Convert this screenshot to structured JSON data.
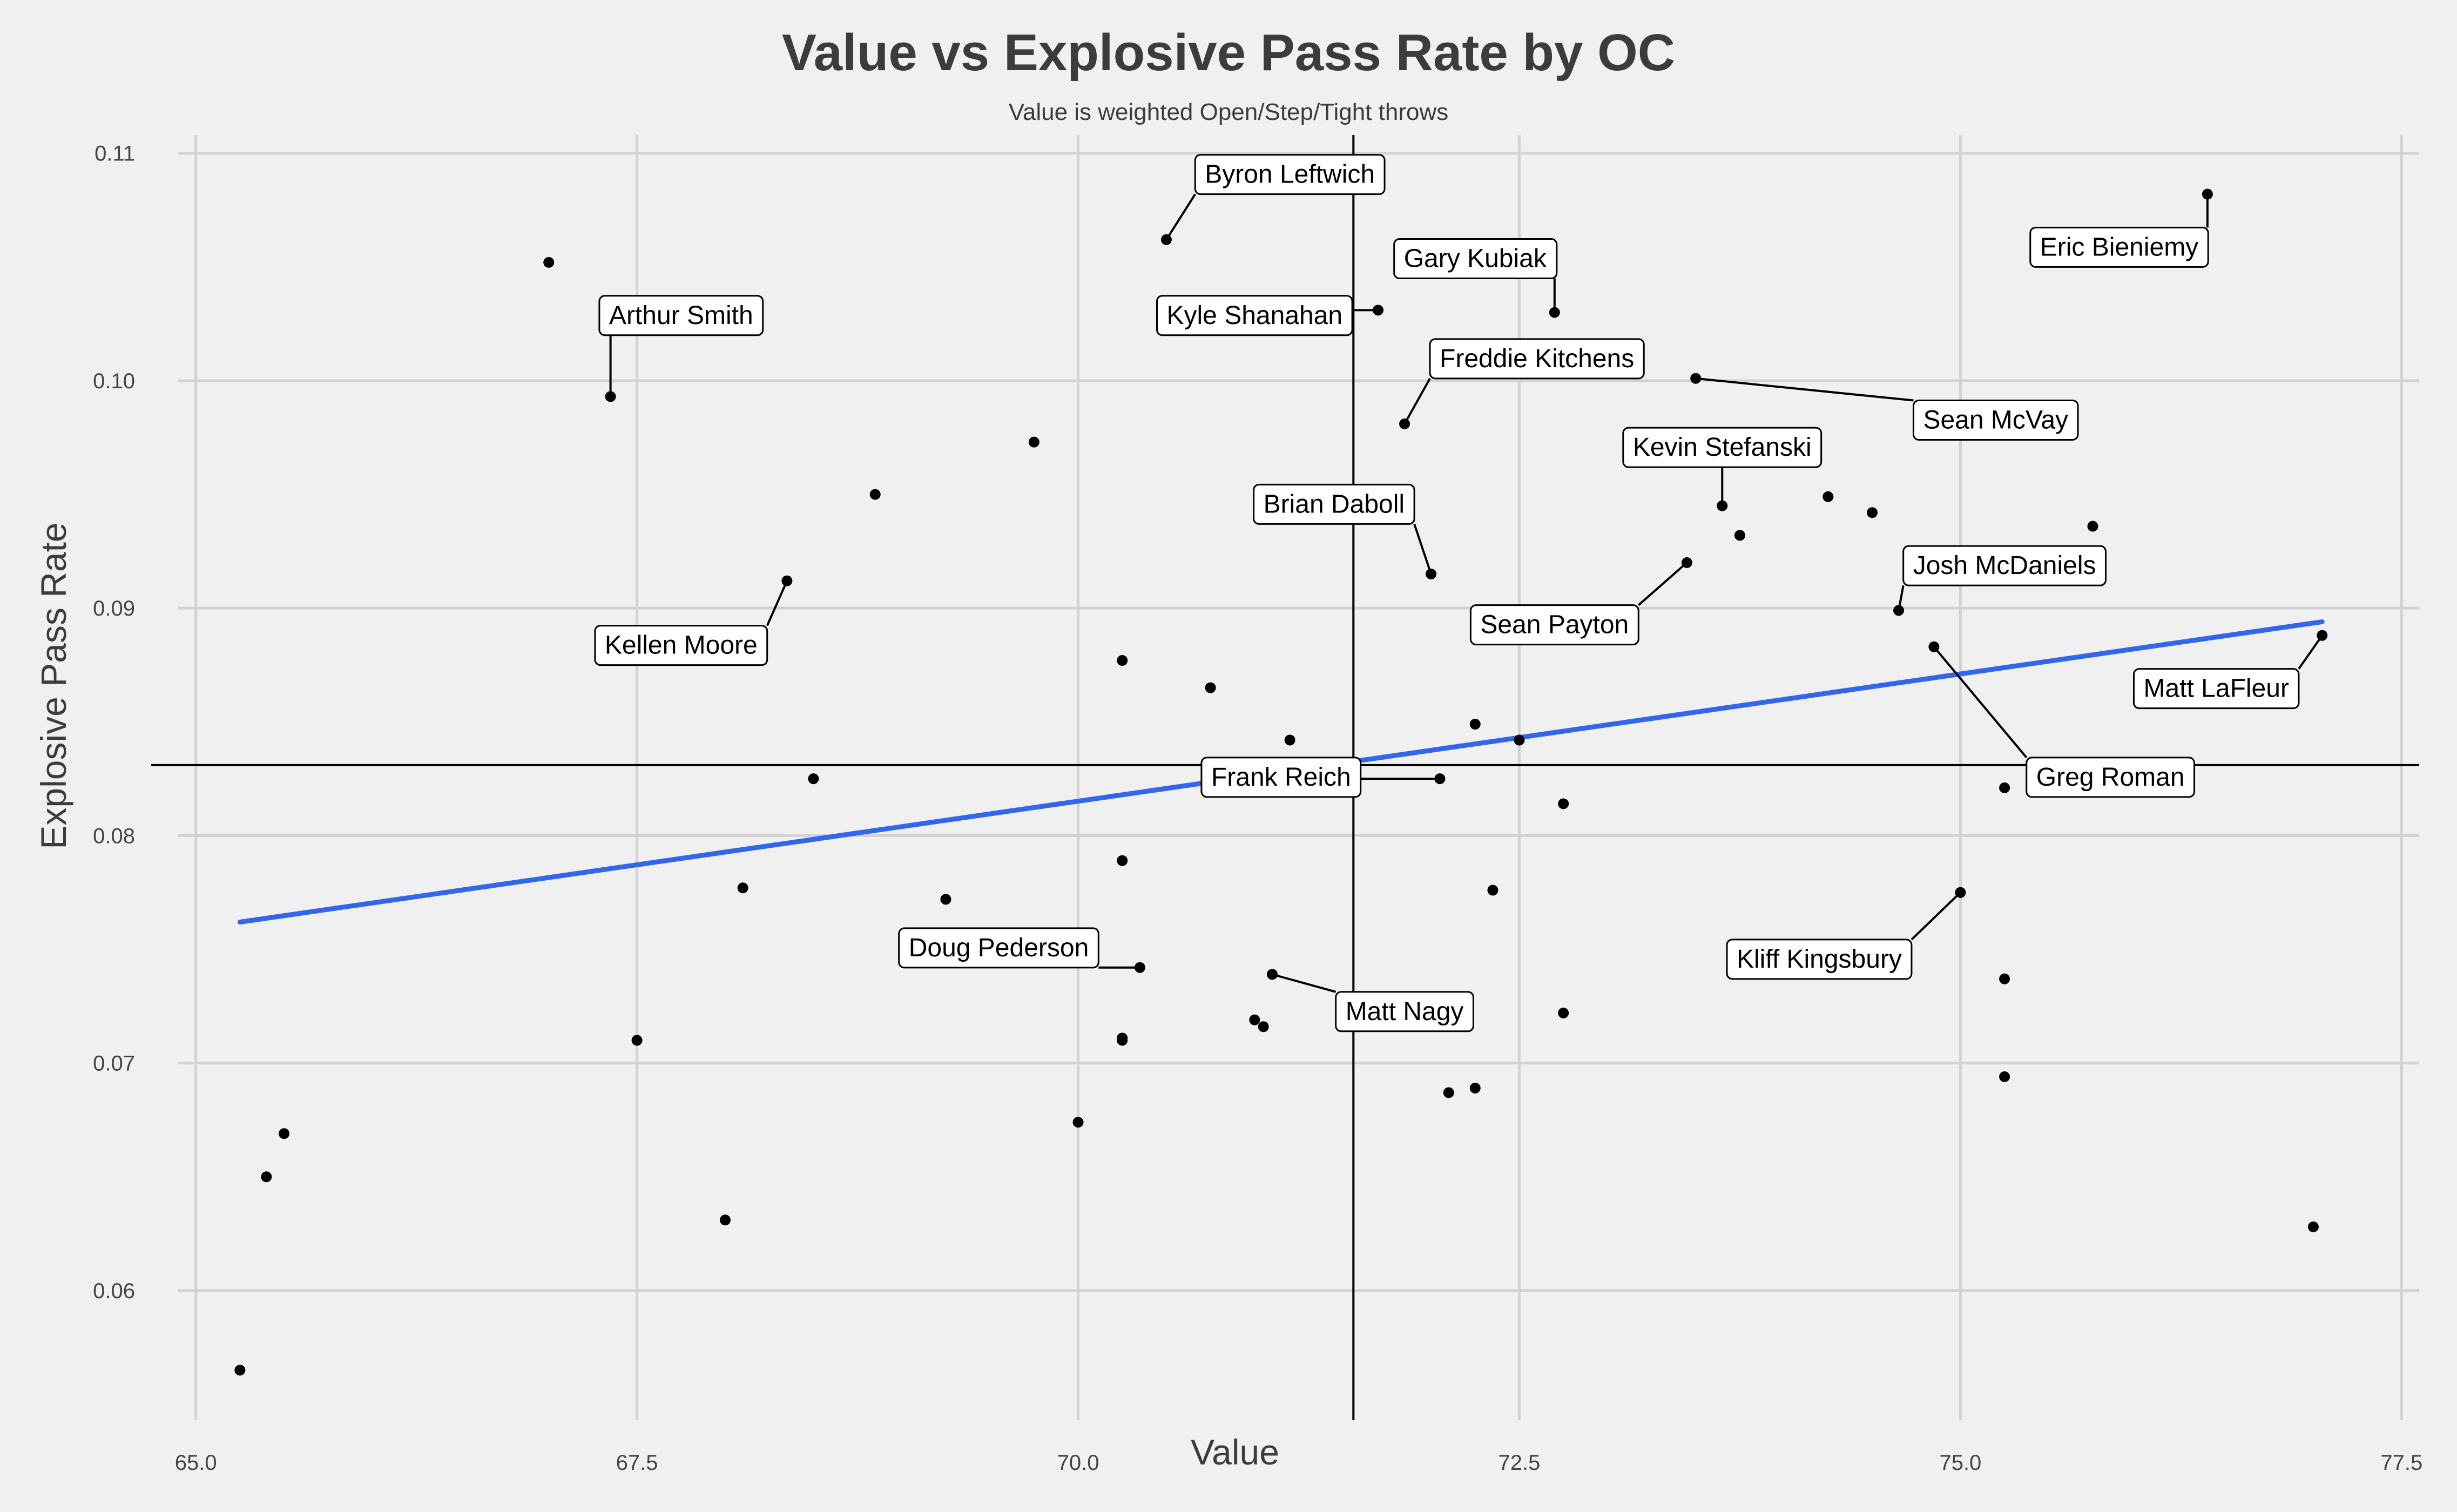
{
  "chart_data": {
    "type": "scatter",
    "title": "Value vs Explosive Pass Rate by OC",
    "subtitle": "Value is weighted Open/Step/Tight throws",
    "xlabel": "Value",
    "ylabel": "Explosive Pass Rate",
    "xlim": [
      64.9,
      77.6
    ],
    "ylim": [
      0.0543,
      0.1108
    ],
    "x_ticks": [
      65.0,
      67.5,
      70.0,
      72.5,
      75.0,
      77.5
    ],
    "x_tick_labels": [
      "65.0",
      "67.5",
      "70.0",
      "72.5",
      "75.0",
      "77.5"
    ],
    "y_ticks": [
      0.06,
      0.07,
      0.08,
      0.09,
      0.1,
      0.11
    ],
    "y_tick_labels": [
      "0.06",
      "0.07",
      "0.08",
      "0.09",
      "0.10",
      "0.11"
    ],
    "grid": true,
    "vline_x": 71.56,
    "hline_y": 0.0831,
    "trend_line": {
      "x": [
        65.25,
        77.05
      ],
      "y": [
        0.0762,
        0.0894
      ],
      "color": "#3366ee"
    },
    "point_color": "#000000",
    "points": [
      {
        "x": 76.4,
        "y": 0.1082,
        "label": "Eric Bieniemy",
        "lx": 75.9,
        "ly": 0.1059
      },
      {
        "x": 70.5,
        "y": 0.1062,
        "label": "Byron Leftwich",
        "lx": 71.2,
        "ly": 0.1091
      },
      {
        "x": 67.0,
        "y": 0.1052,
        "label": ""
      },
      {
        "x": 72.7,
        "y": 0.103,
        "label": "Gary Kubiak",
        "lx": 72.25,
        "ly": 0.1054
      },
      {
        "x": 71.7,
        "y": 0.1031,
        "label": "Kyle Shanahan",
        "lx": 71.0,
        "ly": 0.1029
      },
      {
        "x": 67.35,
        "y": 0.0993,
        "label": "Arthur Smith",
        "lx": 67.75,
        "ly": 0.1029
      },
      {
        "x": 73.5,
        "y": 0.1001,
        "label": "Sean McVay",
        "lx": 75.2,
        "ly": 0.0983
      },
      {
        "x": 71.85,
        "y": 0.0981,
        "label": "Freddie Kitchens",
        "lx": 72.6,
        "ly": 0.101
      },
      {
        "x": 69.75,
        "y": 0.0973,
        "label": ""
      },
      {
        "x": 68.85,
        "y": 0.095,
        "label": ""
      },
      {
        "x": 73.65,
        "y": 0.0945,
        "label": "Kevin Stefanski",
        "lx": 73.65,
        "ly": 0.0971
      },
      {
        "x": 74.25,
        "y": 0.0949,
        "label": ""
      },
      {
        "x": 74.5,
        "y": 0.0942,
        "label": ""
      },
      {
        "x": 75.75,
        "y": 0.0936,
        "label": ""
      },
      {
        "x": 73.75,
        "y": 0.0932,
        "label": ""
      },
      {
        "x": 72.0,
        "y": 0.0915,
        "label": "Brian Daboll",
        "lx": 71.45,
        "ly": 0.0946
      },
      {
        "x": 73.45,
        "y": 0.092,
        "label": "Sean Payton",
        "lx": 72.7,
        "ly": 0.0893
      },
      {
        "x": 68.35,
        "y": 0.0912,
        "label": "Kellen Moore",
        "lx": 67.75,
        "ly": 0.0884
      },
      {
        "x": 74.65,
        "y": 0.0899,
        "label": "Josh McDaniels",
        "lx": 75.25,
        "ly": 0.0919
      },
      {
        "x": 77.05,
        "y": 0.0888,
        "label": "Matt LaFleur",
        "lx": 76.45,
        "ly": 0.0865
      },
      {
        "x": 74.85,
        "y": 0.0883,
        "label": "Greg Roman",
        "lx": 75.85,
        "ly": 0.0826
      },
      {
        "x": 70.25,
        "y": 0.0877,
        "label": ""
      },
      {
        "x": 70.75,
        "y": 0.0865,
        "label": ""
      },
      {
        "x": 72.25,
        "y": 0.0849,
        "label": ""
      },
      {
        "x": 71.2,
        "y": 0.0842,
        "label": ""
      },
      {
        "x": 72.5,
        "y": 0.0842,
        "label": ""
      },
      {
        "x": 72.05,
        "y": 0.0825,
        "label": "Frank Reich",
        "lx": 71.15,
        "ly": 0.0826
      },
      {
        "x": 68.5,
        "y": 0.0825,
        "label": ""
      },
      {
        "x": 75.25,
        "y": 0.0821,
        "label": ""
      },
      {
        "x": 72.75,
        "y": 0.0814,
        "label": ""
      },
      {
        "x": 70.25,
        "y": 0.0789,
        "label": ""
      },
      {
        "x": 68.1,
        "y": 0.0777,
        "label": ""
      },
      {
        "x": 72.35,
        "y": 0.0776,
        "label": ""
      },
      {
        "x": 75.0,
        "y": 0.0775,
        "label": "Kliff Kingsbury",
        "lx": 74.2,
        "ly": 0.0746
      },
      {
        "x": 69.25,
        "y": 0.0772,
        "label": ""
      },
      {
        "x": 70.35,
        "y": 0.0742,
        "label": "Doug Pederson",
        "lx": 69.55,
        "ly": 0.0751
      },
      {
        "x": 71.1,
        "y": 0.0739,
        "label": "Matt Nagy",
        "lx": 71.85,
        "ly": 0.0723
      },
      {
        "x": 75.25,
        "y": 0.0737,
        "label": ""
      },
      {
        "x": 72.75,
        "y": 0.0722,
        "label": ""
      },
      {
        "x": 71.0,
        "y": 0.0719,
        "label": ""
      },
      {
        "x": 71.05,
        "y": 0.0716,
        "label": ""
      },
      {
        "x": 70.25,
        "y": 0.0711,
        "label": ""
      },
      {
        "x": 70.25,
        "y": 0.071,
        "label": ""
      },
      {
        "x": 67.5,
        "y": 0.071,
        "label": ""
      },
      {
        "x": 75.25,
        "y": 0.0694,
        "label": ""
      },
      {
        "x": 72.25,
        "y": 0.0689,
        "label": ""
      },
      {
        "x": 72.1,
        "y": 0.0687,
        "label": ""
      },
      {
        "x": 70.0,
        "y": 0.0674,
        "label": ""
      },
      {
        "x": 65.5,
        "y": 0.0669,
        "label": ""
      },
      {
        "x": 65.4,
        "y": 0.065,
        "label": ""
      },
      {
        "x": 68.0,
        "y": 0.0631,
        "label": ""
      },
      {
        "x": 77.0,
        "y": 0.0628,
        "label": ""
      },
      {
        "x": 65.25,
        "y": 0.0565,
        "label": ""
      }
    ]
  }
}
